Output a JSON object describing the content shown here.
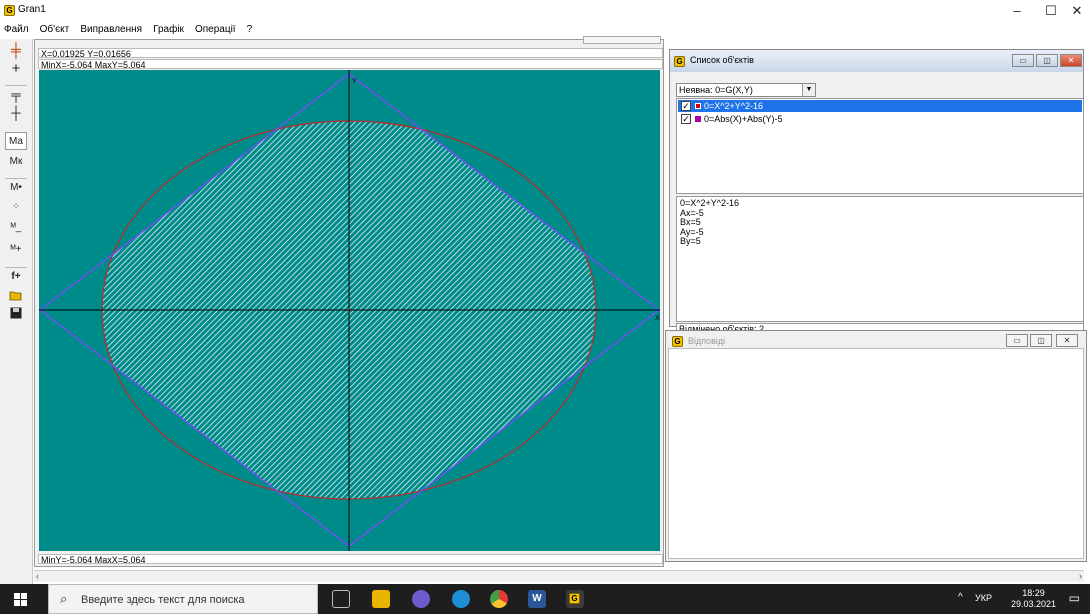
{
  "window": {
    "title": "Gran1",
    "minimize": "–",
    "maximize": "☐",
    "close": "✕"
  },
  "menu": [
    "Файл",
    "Об'єкт",
    "Виправлення",
    "Графік",
    "Операції",
    "?"
  ],
  "graph": {
    "coords": "X=0.01925  Y=0.01656",
    "top_range": "MinX=-5.064  MaxY=5.064",
    "bottom_range": "MinY=-5.064  MaxX=5.064",
    "x_axis_label": "X",
    "y_axis_label": "Y",
    "colors": {
      "background": "#008b8b",
      "circle": "#b03030",
      "diamond": "#7a49ff",
      "hatch": "#ffffff",
      "axes": "#000000"
    }
  },
  "toolbar_icons": [
    "target-cross-icon",
    "crosshair-icon",
    "cross-tick-icon",
    "cross-plus-icon",
    "ma-icon",
    "mk-icon",
    "m-dot-icon",
    "scatter-icon",
    "m-minus-icon",
    "m-plus-icon",
    "f-plus-icon",
    "open-folder-icon",
    "save-disk-icon"
  ],
  "toolbar_labels": [
    "Ma",
    "Mк",
    "M•",
    "f+"
  ],
  "objects_window": {
    "title": "Список об'єктів",
    "dropdown": "Неявна: 0=G(X,Y)",
    "items": [
      {
        "label": "0=X^2+Y^2-16",
        "color": "#cc0000",
        "checked": true,
        "selected": true
      },
      {
        "label": "0=Abs(X)+Abs(Y)-5",
        "color": "#aa00aa",
        "checked": true,
        "selected": false
      }
    ],
    "properties": [
      "0=X^2+Y^2-16",
      "Ax=-5",
      "Bx=5",
      "Ay=-5",
      "By=5"
    ],
    "status": "Відмічено об'єктів: 2"
  },
  "answers_window": {
    "title": "Відповіді"
  },
  "taskbar": {
    "search_placeholder": "Введите здесь текст для поиска",
    "language": "УКР",
    "time": "18:29",
    "date": "29.03.2021"
  }
}
